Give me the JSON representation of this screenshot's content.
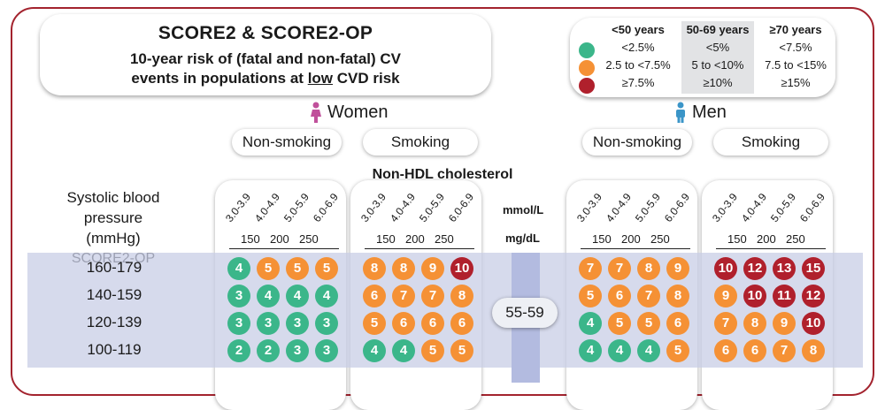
{
  "title": "SCORE2 & SCORE2-OP",
  "subtitle_line1": "10-year risk of (fatal and non-fatal) CV",
  "subtitle_pre": "events in populations at ",
  "subtitle_low": "low",
  "subtitle_post": " CVD risk",
  "legend": {
    "columns": [
      {
        "head": "<50 years",
        "rows": [
          "<2.5%",
          "2.5 to <7.5%",
          "≥7.5%"
        ]
      },
      {
        "head": "50-69 years",
        "rows": [
          "<5%",
          "5 to <10%",
          "≥10%"
        ]
      },
      {
        "head": "≥70 years",
        "rows": [
          "<7.5%",
          "7.5 to <15%",
          "≥15%"
        ]
      }
    ],
    "colors": [
      "#3bb68a",
      "#f59135",
      "#b0202c"
    ]
  },
  "women_label": "Women",
  "men_label": "Men",
  "smoking_labels": {
    "non": "Non-smoking",
    "smk": "Smoking"
  },
  "nonhdl_label": "Non-HDL cholesterol",
  "bp_header": [
    "Systolic blood",
    "pressure (mmHg)",
    "SCORE2-OP"
  ],
  "chol_mmol": [
    "3.0-3.9",
    "4.0-4.9",
    "5.0-5.9",
    "6.0-6.9"
  ],
  "chol_mgdl": [
    "150",
    "200",
    "250"
  ],
  "unit_mmol": "mmol/L",
  "unit_mgdl": "mg/dL",
  "age_group": "55-59",
  "rows": [
    "160-179",
    "140-159",
    "120-139",
    "100-119"
  ],
  "colors": {
    "green": "#3bb68a",
    "orange": "#f59135",
    "red": "#b0202c"
  },
  "grids": {
    "women_non": [
      [
        4,
        5,
        5,
        5
      ],
      [
        3,
        4,
        4,
        4
      ],
      [
        3,
        3,
        3,
        3
      ],
      [
        2,
        2,
        3,
        3
      ]
    ],
    "women_smk": [
      [
        8,
        8,
        9,
        10
      ],
      [
        6,
        7,
        7,
        8
      ],
      [
        5,
        6,
        6,
        6
      ],
      [
        4,
        4,
        5,
        5
      ]
    ],
    "men_non": [
      [
        7,
        7,
        8,
        9
      ],
      [
        5,
        6,
        7,
        8
      ],
      [
        4,
        5,
        5,
        6
      ],
      [
        4,
        4,
        4,
        5
      ]
    ],
    "men_smk": [
      [
        10,
        12,
        13,
        15
      ],
      [
        9,
        10,
        11,
        12
      ],
      [
        7,
        8,
        9,
        10
      ],
      [
        6,
        6,
        7,
        8
      ]
    ]
  },
  "color_codes": {
    "women_non": [
      [
        "g",
        "o",
        "o",
        "o"
      ],
      [
        "g",
        "g",
        "g",
        "g"
      ],
      [
        "g",
        "g",
        "g",
        "g"
      ],
      [
        "g",
        "g",
        "g",
        "g"
      ]
    ],
    "women_smk": [
      [
        "o",
        "o",
        "o",
        "r"
      ],
      [
        "o",
        "o",
        "o",
        "o"
      ],
      [
        "o",
        "o",
        "o",
        "o"
      ],
      [
        "g",
        "g",
        "o",
        "o"
      ]
    ],
    "men_non": [
      [
        "o",
        "o",
        "o",
        "o"
      ],
      [
        "o",
        "o",
        "o",
        "o"
      ],
      [
        "g",
        "o",
        "o",
        "o"
      ],
      [
        "g",
        "g",
        "g",
        "o"
      ]
    ],
    "men_smk": [
      [
        "r",
        "r",
        "r",
        "r"
      ],
      [
        "o",
        "r",
        "r",
        "r"
      ],
      [
        "o",
        "o",
        "o",
        "r"
      ],
      [
        "o",
        "o",
        "o",
        "o"
      ]
    ]
  }
}
